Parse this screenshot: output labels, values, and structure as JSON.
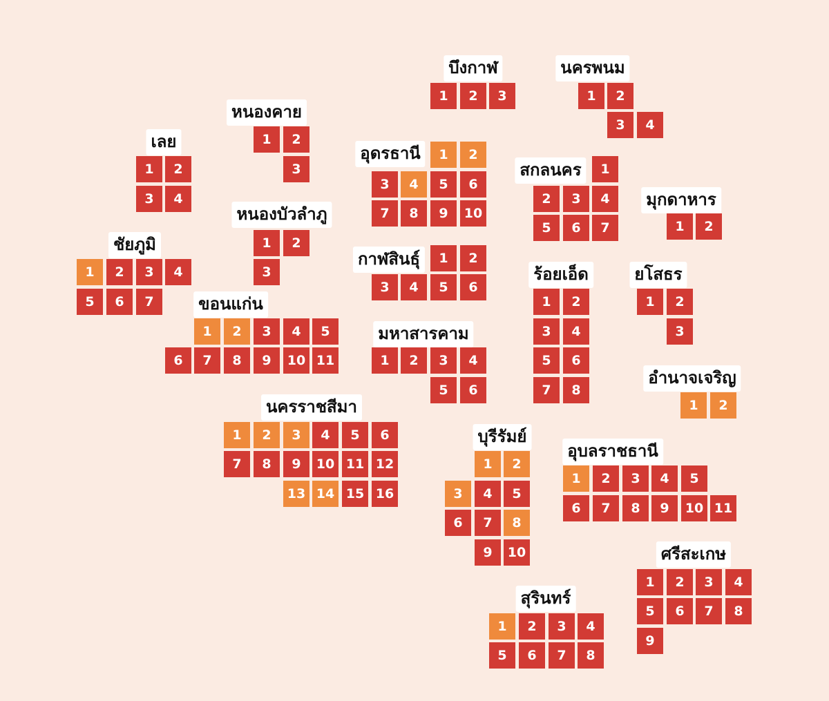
{
  "colors": {
    "background": "#fbebe2",
    "district_red": "#d23b34",
    "district_orange": "#ef8a3c",
    "label_bg": "#ffffff"
  },
  "provinces": [
    {
      "name": "บึงกาฬ",
      "districts": [
        {
          "n": "1",
          "c": "red"
        },
        {
          "n": "2",
          "c": "red"
        },
        {
          "n": "3",
          "c": "red"
        }
      ]
    },
    {
      "name": "นครพนม",
      "districts": [
        {
          "n": "1",
          "c": "red"
        },
        {
          "n": "2",
          "c": "red"
        },
        {
          "n": "3",
          "c": "red"
        },
        {
          "n": "4",
          "c": "red"
        }
      ]
    },
    {
      "name": "หนองคาย",
      "districts": [
        {
          "n": "1",
          "c": "red"
        },
        {
          "n": "2",
          "c": "red"
        },
        {
          "n": "3",
          "c": "red"
        }
      ]
    },
    {
      "name": "เลย",
      "districts": [
        {
          "n": "1",
          "c": "red"
        },
        {
          "n": "2",
          "c": "red"
        },
        {
          "n": "3",
          "c": "red"
        },
        {
          "n": "4",
          "c": "red"
        }
      ]
    },
    {
      "name": "อุดรธานี",
      "districts": [
        {
          "n": "1",
          "c": "orange"
        },
        {
          "n": "2",
          "c": "orange"
        },
        {
          "n": "3",
          "c": "red"
        },
        {
          "n": "4",
          "c": "orange"
        },
        {
          "n": "5",
          "c": "red"
        },
        {
          "n": "6",
          "c": "red"
        },
        {
          "n": "7",
          "c": "red"
        },
        {
          "n": "8",
          "c": "red"
        },
        {
          "n": "9",
          "c": "red"
        },
        {
          "n": "10",
          "c": "red"
        }
      ]
    },
    {
      "name": "สกลนคร",
      "districts": [
        {
          "n": "1",
          "c": "red"
        },
        {
          "n": "2",
          "c": "red"
        },
        {
          "n": "3",
          "c": "red"
        },
        {
          "n": "4",
          "c": "red"
        },
        {
          "n": "5",
          "c": "red"
        },
        {
          "n": "6",
          "c": "red"
        },
        {
          "n": "7",
          "c": "red"
        }
      ]
    },
    {
      "name": "มุกดาหาร",
      "districts": [
        {
          "n": "1",
          "c": "red"
        },
        {
          "n": "2",
          "c": "red"
        }
      ]
    },
    {
      "name": "หนองบัวลำภู",
      "districts": [
        {
          "n": "1",
          "c": "red"
        },
        {
          "n": "2",
          "c": "red"
        },
        {
          "n": "3",
          "c": "red"
        }
      ]
    },
    {
      "name": "ชัยภูมิ",
      "districts": [
        {
          "n": "1",
          "c": "orange"
        },
        {
          "n": "2",
          "c": "red"
        },
        {
          "n": "3",
          "c": "red"
        },
        {
          "n": "4",
          "c": "red"
        },
        {
          "n": "5",
          "c": "red"
        },
        {
          "n": "6",
          "c": "red"
        },
        {
          "n": "7",
          "c": "red"
        }
      ]
    },
    {
      "name": "กาฬสินธุ์",
      "districts": [
        {
          "n": "1",
          "c": "red"
        },
        {
          "n": "2",
          "c": "red"
        },
        {
          "n": "3",
          "c": "red"
        },
        {
          "n": "4",
          "c": "red"
        },
        {
          "n": "5",
          "c": "red"
        },
        {
          "n": "6",
          "c": "red"
        }
      ]
    },
    {
      "name": "ร้อยเอ็ด",
      "districts": [
        {
          "n": "1",
          "c": "red"
        },
        {
          "n": "2",
          "c": "red"
        },
        {
          "n": "3",
          "c": "red"
        },
        {
          "n": "4",
          "c": "red"
        },
        {
          "n": "5",
          "c": "red"
        },
        {
          "n": "6",
          "c": "red"
        },
        {
          "n": "7",
          "c": "red"
        },
        {
          "n": "8",
          "c": "red"
        }
      ]
    },
    {
      "name": "ยโสธร",
      "districts": [
        {
          "n": "1",
          "c": "red"
        },
        {
          "n": "2",
          "c": "red"
        },
        {
          "n": "3",
          "c": "red"
        }
      ]
    },
    {
      "name": "ขอนแก่น",
      "districts": [
        {
          "n": "1",
          "c": "orange"
        },
        {
          "n": "2",
          "c": "orange"
        },
        {
          "n": "3",
          "c": "red"
        },
        {
          "n": "4",
          "c": "red"
        },
        {
          "n": "5",
          "c": "red"
        },
        {
          "n": "6",
          "c": "red"
        },
        {
          "n": "7",
          "c": "red"
        },
        {
          "n": "8",
          "c": "red"
        },
        {
          "n": "9",
          "c": "red"
        },
        {
          "n": "10",
          "c": "red"
        },
        {
          "n": "11",
          "c": "red"
        }
      ]
    },
    {
      "name": "มหาสารคาม",
      "districts": [
        {
          "n": "1",
          "c": "red"
        },
        {
          "n": "2",
          "c": "red"
        },
        {
          "n": "3",
          "c": "red"
        },
        {
          "n": "4",
          "c": "red"
        },
        {
          "n": "5",
          "c": "red"
        },
        {
          "n": "6",
          "c": "red"
        }
      ]
    },
    {
      "name": "อำนาจเจริญ",
      "districts": [
        {
          "n": "1",
          "c": "orange"
        },
        {
          "n": "2",
          "c": "orange"
        }
      ]
    },
    {
      "name": "นครราชสีมา",
      "districts": [
        {
          "n": "1",
          "c": "orange"
        },
        {
          "n": "2",
          "c": "orange"
        },
        {
          "n": "3",
          "c": "orange"
        },
        {
          "n": "4",
          "c": "red"
        },
        {
          "n": "5",
          "c": "red"
        },
        {
          "n": "6",
          "c": "red"
        },
        {
          "n": "7",
          "c": "red"
        },
        {
          "n": "8",
          "c": "red"
        },
        {
          "n": "9",
          "c": "red"
        },
        {
          "n": "10",
          "c": "red"
        },
        {
          "n": "11",
          "c": "red"
        },
        {
          "n": "12",
          "c": "red"
        },
        {
          "n": "13",
          "c": "orange"
        },
        {
          "n": "14",
          "c": "orange"
        },
        {
          "n": "15",
          "c": "red"
        },
        {
          "n": "16",
          "c": "red"
        }
      ]
    },
    {
      "name": "บุรีรัมย์",
      "districts": [
        {
          "n": "1",
          "c": "orange"
        },
        {
          "n": "2",
          "c": "orange"
        },
        {
          "n": "3",
          "c": "orange"
        },
        {
          "n": "4",
          "c": "red"
        },
        {
          "n": "5",
          "c": "red"
        },
        {
          "n": "6",
          "c": "red"
        },
        {
          "n": "7",
          "c": "red"
        },
        {
          "n": "8",
          "c": "orange"
        },
        {
          "n": "9",
          "c": "red"
        },
        {
          "n": "10",
          "c": "red"
        }
      ]
    },
    {
      "name": "อุบลราชธานี",
      "districts": [
        {
          "n": "1",
          "c": "orange"
        },
        {
          "n": "2",
          "c": "red"
        },
        {
          "n": "3",
          "c": "red"
        },
        {
          "n": "4",
          "c": "red"
        },
        {
          "n": "5",
          "c": "red"
        },
        {
          "n": "6",
          "c": "red"
        },
        {
          "n": "7",
          "c": "red"
        },
        {
          "n": "8",
          "c": "red"
        },
        {
          "n": "9",
          "c": "red"
        },
        {
          "n": "10",
          "c": "red"
        },
        {
          "n": "11",
          "c": "red"
        }
      ]
    },
    {
      "name": "ศรีสะเกษ",
      "districts": [
        {
          "n": "1",
          "c": "red"
        },
        {
          "n": "2",
          "c": "red"
        },
        {
          "n": "3",
          "c": "red"
        },
        {
          "n": "4",
          "c": "red"
        },
        {
          "n": "5",
          "c": "red"
        },
        {
          "n": "6",
          "c": "red"
        },
        {
          "n": "7",
          "c": "red"
        },
        {
          "n": "8",
          "c": "red"
        },
        {
          "n": "9",
          "c": "red"
        }
      ]
    },
    {
      "name": "สุรินทร์",
      "districts": [
        {
          "n": "1",
          "c": "orange"
        },
        {
          "n": "2",
          "c": "red"
        },
        {
          "n": "3",
          "c": "red"
        },
        {
          "n": "4",
          "c": "red"
        },
        {
          "n": "5",
          "c": "red"
        },
        {
          "n": "6",
          "c": "red"
        },
        {
          "n": "7",
          "c": "red"
        },
        {
          "n": "8",
          "c": "red"
        }
      ]
    }
  ]
}
